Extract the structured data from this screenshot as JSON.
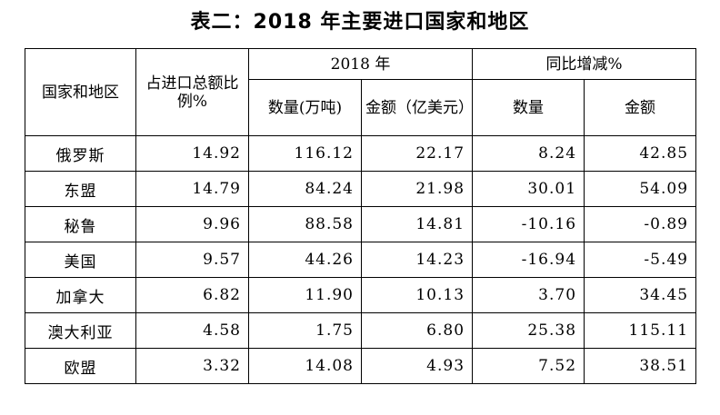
{
  "title": "表二：2018 年主要进口国家和地区",
  "headers": {
    "region": "国家和地区",
    "share": "占进口总额比例%",
    "year_group": "2018 年",
    "yoy_group": "同比增减%",
    "quantity": "数量(万吨)",
    "amount": "金额（亿美元）",
    "yoy_quantity": "数量",
    "yoy_amount": "金额"
  },
  "rows": [
    {
      "name": "俄罗斯",
      "share": "14.92",
      "qty": "116.12",
      "amt": "22.17",
      "yoy_qty": "8.24",
      "yoy_amt": "42.85"
    },
    {
      "name": "东盟",
      "share": "14.79",
      "qty": "84.24",
      "amt": "21.98",
      "yoy_qty": "30.01",
      "yoy_amt": "54.09"
    },
    {
      "name": "秘鲁",
      "share": "9.96",
      "qty": "88.58",
      "amt": "14.81",
      "yoy_qty": "-10.16",
      "yoy_amt": "-0.89"
    },
    {
      "name": "美国",
      "share": "9.57",
      "qty": "44.26",
      "amt": "14.23",
      "yoy_qty": "-16.94",
      "yoy_amt": "-5.49"
    },
    {
      "name": "加拿大",
      "share": "6.82",
      "qty": "11.90",
      "amt": "10.13",
      "yoy_qty": "3.70",
      "yoy_amt": "34.45"
    },
    {
      "name": "澳大利亚",
      "share": "4.58",
      "qty": "1.75",
      "amt": "6.80",
      "yoy_qty": "25.38",
      "yoy_amt": "115.11"
    },
    {
      "name": "欧盟",
      "share": "3.32",
      "qty": "14.08",
      "amt": "4.93",
      "yoy_qty": "7.52",
      "yoy_amt": "38.51"
    }
  ]
}
